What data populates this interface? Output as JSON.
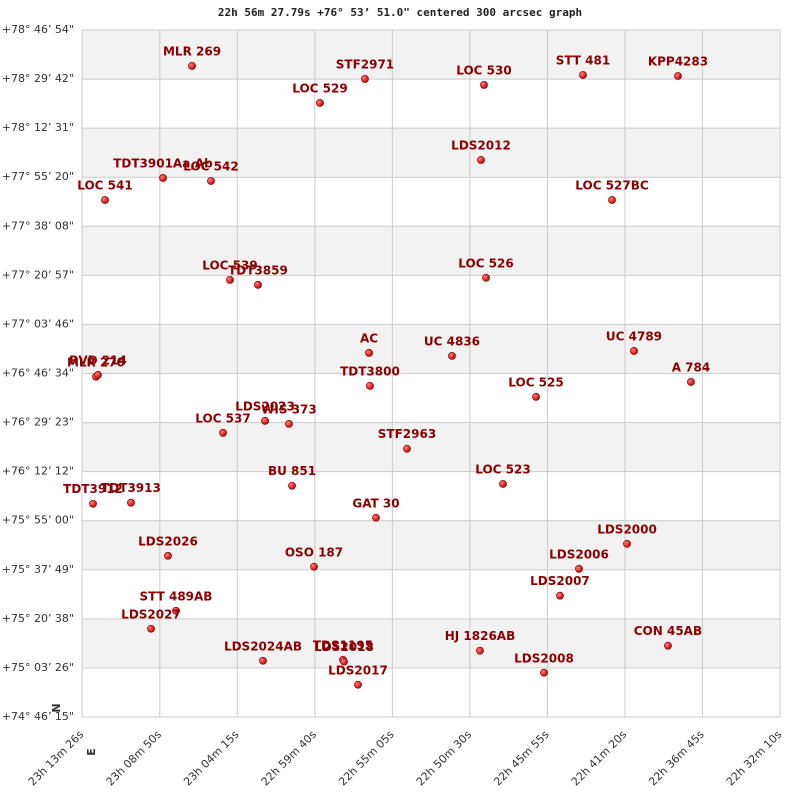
{
  "chart_data": {
    "type": "scatter",
    "title": "22h 56m 27.79s +76° 53’ 51.0\" centered 300 arcsec graph",
    "y_direction": "N",
    "x_direction": "E",
    "color": "#cc0000",
    "grid": true,
    "stripes": true,
    "xlim": [
      348.358,
      338.042
    ],
    "ylim": [
      74.7708,
      78.7817
    ],
    "xticks": [
      {
        "value": 348.358,
        "label": "23h 13m 26s"
      },
      {
        "value": 347.208,
        "label": "23h 08m 50s"
      },
      {
        "value": 346.063,
        "label": "23h 04m 15s"
      },
      {
        "value": 344.917,
        "label": "22h 59m 40s"
      },
      {
        "value": 343.771,
        "label": "22h 55m 05s"
      },
      {
        "value": 342.625,
        "label": "22h 50m 30s"
      },
      {
        "value": 341.479,
        "label": "22h 45m 55s"
      },
      {
        "value": 340.333,
        "label": "22h 41m 20s"
      },
      {
        "value": 339.188,
        "label": "22h 36m 45s"
      },
      {
        "value": 338.042,
        "label": "22h 32m 10s"
      }
    ],
    "yticks": [
      {
        "value": 78.7817,
        "label": "+78° 46’ 54\""
      },
      {
        "value": 78.495,
        "label": "+78° 29’ 42\""
      },
      {
        "value": 78.2086,
        "label": "+78° 12’ 31\""
      },
      {
        "value": 77.9222,
        "label": "+77° 55’ 20\""
      },
      {
        "value": 77.6356,
        "label": "+77° 38’ 08\""
      },
      {
        "value": 77.3492,
        "label": "+77° 20’ 57\""
      },
      {
        "value": 77.0628,
        "label": "+77° 03’ 46\""
      },
      {
        "value": 76.7761,
        "label": "+76° 46’ 34\""
      },
      {
        "value": 76.4897,
        "label": "+76° 29’ 23\""
      },
      {
        "value": 76.2033,
        "label": "+76° 12’ 12\""
      },
      {
        "value": 75.9167,
        "label": "+75° 55’ 00\""
      },
      {
        "value": 75.6303,
        "label": "+75° 37’ 49\""
      },
      {
        "value": 75.3439,
        "label": "+75° 20’ 38\""
      },
      {
        "value": 75.0572,
        "label": "+75° 03’ 26\""
      },
      {
        "value": 74.7708,
        "label": "+74° 46’ 15\""
      }
    ],
    "labels": [
      "MLR 269",
      "STF2971",
      "LOC 530",
      "STT 481",
      "KPP4283",
      "LOC 529",
      "LDS2012",
      "TDT3901Aa,Ab",
      "LOC 542",
      "LOC 541",
      "LOC 527BC",
      "LOC 539",
      "TDT3859",
      "LOC 526",
      "AC",
      "UC 4836",
      "UC 4789",
      "MLR 270",
      "RVD 214",
      "A  784",
      "TDT3800",
      "LOC 525",
      "LDS2023",
      "WIS 373",
      "LOC 537",
      "STF2963",
      "BU  851",
      "LOC 523",
      "TDT3912",
      "TDT3913",
      "GAT  30",
      "LDS2000",
      "LDS2026",
      "OSO 187",
      "LDS2006",
      "LDS2007",
      "STT 489AB",
      "LDS2027",
      "CON  45AB",
      "HJ 1826AB",
      "TDS1195",
      "LDS2018",
      "LDS2024AB",
      "LDS2008",
      "LDS2017"
    ],
    "x": [
      346.732,
      344.176,
      342.417,
      340.954,
      339.55,
      344.841,
      342.461,
      347.161,
      346.452,
      348.018,
      340.525,
      346.171,
      345.757,
      342.387,
      344.116,
      342.89,
      340.2,
      348.151,
      348.122,
      339.358,
      344.102,
      341.648,
      345.653,
      345.299,
      346.274,
      343.555,
      345.254,
      342.136,
      348.195,
      347.634,
      344.013,
      340.303,
      347.087,
      344.929,
      341.013,
      341.294,
      346.969,
      347.338,
      339.698,
      342.476,
      344.501,
      344.486,
      345.683,
      341.53,
      344.279
    ],
    "values": [
      78.572,
      78.496,
      78.461,
      78.519,
      78.513,
      78.356,
      78.023,
      77.918,
      77.9,
      77.789,
      77.789,
      77.323,
      77.294,
      77.335,
      76.897,
      76.879,
      76.908,
      76.757,
      76.768,
      76.727,
      76.704,
      76.64,
      76.5,
      76.482,
      76.43,
      76.337,
      76.121,
      76.132,
      76.016,
      76.022,
      75.934,
      75.782,
      75.712,
      75.648,
      75.636,
      75.479,
      75.391,
      75.286,
      75.187,
      75.158,
      75.105,
      75.094,
      75.099,
      75.029,
      74.959
    ]
  }
}
